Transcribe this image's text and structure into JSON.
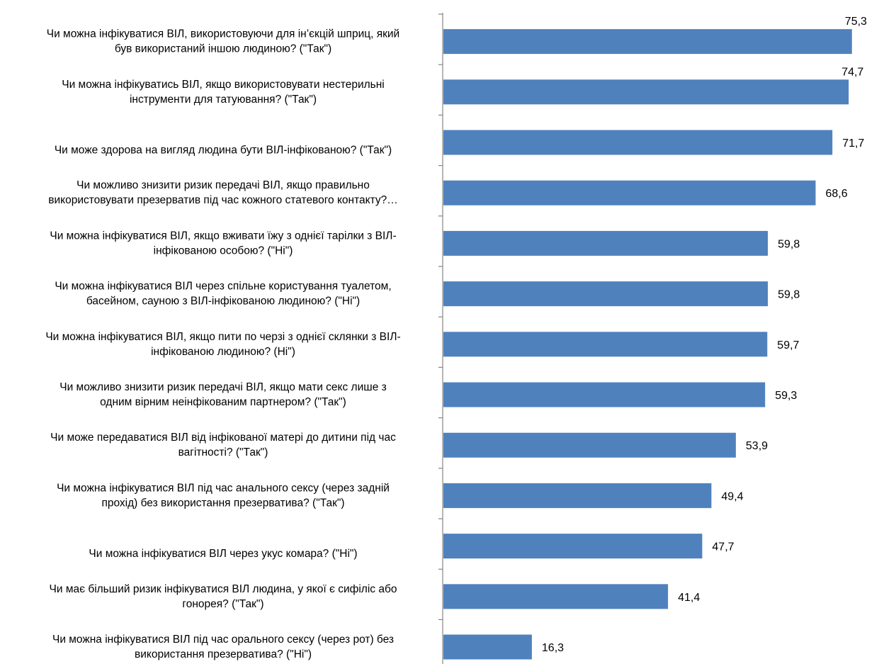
{
  "chart_data": {
    "type": "bar",
    "orientation": "horizontal",
    "title": "",
    "xlabel": "",
    "ylabel": "",
    "xlim": [
      0,
      80
    ],
    "grid": false,
    "legend": "none",
    "bar_color": "#4F81BD",
    "categories": [
      [
        "Чи можна інфікуватися ВІЛ, використовуючи для ін’єкцій шприц, який",
        "був використаний іншою людиною? (\"Так\")"
      ],
      [
        "Чи можна інфікуватись ВІЛ, якщо використовувати нестерильні",
        "інструменти для татуювання? (\"Так\")"
      ],
      [
        "Чи може здорова на вигляд людина бути ВІЛ-інфікованою? (\"Так\")"
      ],
      [
        "Чи можливо знизити ризик передачі ВІЛ, якщо правильно",
        "використовувати презерватив під час кожного статевого контакту?…"
      ],
      [
        "Чи можна інфікуватися ВІЛ, якщо вживати їжу з однієї тарілки з ВІЛ-",
        "інфікованою особою? (\"Ні\")"
      ],
      [
        "Чи можна інфікуватися ВІЛ через спільне користування туалетом,",
        "басейном, сауною з ВІЛ-інфікованою людиною? (\"Ні\")"
      ],
      [
        "Чи можна інфікуватися ВІЛ, якщо пити по черзі з однієї склянки з ВІЛ-",
        "інфікованою людиною? (Ні\")"
      ],
      [
        "Чи можливо знизити ризик передачі ВІЛ, якщо мати секс лише з",
        "одним вірним неінфікованим партнером? (\"Так\")"
      ],
      [
        "Чи може передаватися ВІЛ від інфікованої матері до дитини під час",
        "вагітності? (\"Так\")"
      ],
      [
        "Чи можна інфікуватися ВІЛ під час анального сексу (через задній",
        "прохід) без використання презерватива? (\"Так\")"
      ],
      [
        "Чи можна інфікуватися ВІЛ через укус комара? (\"Ні\")"
      ],
      [
        "Чи має більший ризик інфікуватися ВІЛ людина, у якої є сифіліс або",
        "гонорея? (\"Так\")"
      ],
      [
        "Чи можна інфікуватися ВІЛ під час орального сексу (через рот) без",
        "використання презерватива? (\"Ні\")"
      ]
    ],
    "values": [
      75.3,
      74.7,
      71.7,
      68.6,
      59.8,
      59.8,
      59.7,
      59.3,
      53.9,
      49.4,
      47.7,
      41.4,
      16.3
    ],
    "value_labels": [
      "75,3",
      "74,7",
      "71,7",
      "68,6",
      "59,8",
      "59,8",
      "59,7",
      "59,3",
      "53,9",
      "49,4",
      "47,7",
      "41,4",
      "16,3"
    ]
  }
}
